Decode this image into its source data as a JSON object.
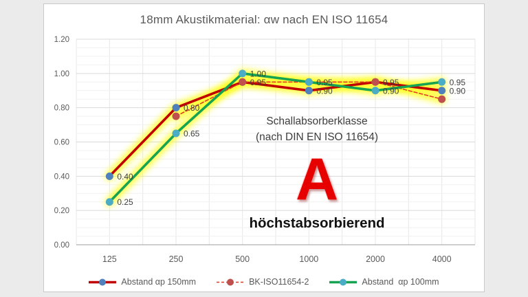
{
  "page": {
    "background": "#ebebeb",
    "chart_background": "#ffffff",
    "chart_border": "#c9c9c9"
  },
  "chart": {
    "title": "18mm Akustikmaterial: αw nach EN ISO 11654",
    "annotations": {
      "class_title_line1": "Schallabsorberklasse",
      "class_title_line2": "(nach DIN EN ISO 11654)",
      "class_letter": "A",
      "class_letter_color": "#e60000",
      "class_description": "höchstabsorbierend"
    }
  },
  "chart_data": {
    "type": "line",
    "title": "18mm Akustikmaterial: αw nach EN ISO 11654",
    "categories": [
      "125",
      "250",
      "500",
      "1000",
      "2000",
      "4000"
    ],
    "series": [
      {
        "name": "Abstand αp 150mm",
        "values": [
          0.4,
          0.8,
          0.95,
          0.9,
          0.95,
          0.9
        ],
        "data_labels": [
          "0.40",
          "0.80",
          "0.95",
          "0.90",
          "0.95",
          "0.90"
        ],
        "line_color": "#c00000",
        "marker_color": "#4f81bd",
        "line_style": "solid"
      },
      {
        "name": "BK-ISO11654-2",
        "values": [
          null,
          0.75,
          0.95,
          0.95,
          0.95,
          0.85
        ],
        "data_labels": null,
        "line_color": "#e03a27",
        "marker_color": "#c0504d",
        "line_style": "dashed"
      },
      {
        "name": "Abstand  αp 100mm",
        "values": [
          0.25,
          0.65,
          1.0,
          0.95,
          0.9,
          0.95
        ],
        "data_labels": [
          "0.25",
          "0.65",
          "1.00",
          "0.95",
          "0.90",
          "0.95"
        ],
        "line_color": "#16a352",
        "marker_color": "#4bacc6",
        "line_style": "solid"
      }
    ],
    "ylim": [
      0.0,
      1.2
    ],
    "yticks": [
      "0.00",
      "0.20",
      "0.40",
      "0.60",
      "0.80",
      "1.00",
      "1.20"
    ],
    "minor_ytick_step": 0.05,
    "xlabel": "",
    "ylabel": "",
    "grid": "major+minor",
    "legend_position": "bottom",
    "highlight_color": "#ffff22",
    "label_color": "#3f3f3f",
    "axis_text_color": "#595959"
  }
}
